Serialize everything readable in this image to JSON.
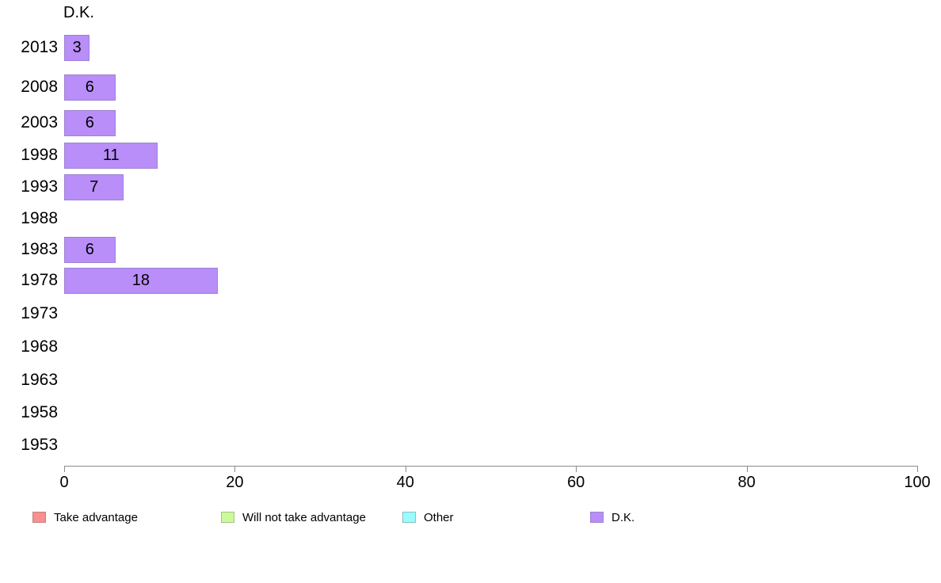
{
  "chart_data": {
    "type": "bar",
    "orientation": "horizontal",
    "title": "D.K.",
    "categories": [
      "2013",
      "2008",
      "2003",
      "1998",
      "1993",
      "1988",
      "1983",
      "1978",
      "1973",
      "1968",
      "1963",
      "1958",
      "1953"
    ],
    "values": [
      3,
      6,
      6,
      11,
      7,
      null,
      6,
      18,
      null,
      null,
      null,
      null,
      null
    ],
    "value_labels": [
      "3",
      "6",
      "6",
      "11",
      "7",
      "",
      "6",
      "18",
      "",
      "",
      "",
      "",
      ""
    ],
    "xlabel": "",
    "ylabel": "",
    "xlim": [
      0,
      100
    ],
    "x_ticks": [
      0,
      20,
      40,
      60,
      80,
      100
    ],
    "grid": false,
    "bar_fill": "#b98ef8",
    "bar_border": "#9d82d2",
    "axis_color": "#8c8c8c",
    "text_color": "#000000",
    "legend": {
      "position": "bottom",
      "items": [
        {
          "label": "Take advantage",
          "fill": "#f98f8f",
          "border": "#c48181"
        },
        {
          "label": "Will not take advantage",
          "fill": "#ccf99a",
          "border": "#a3c47e"
        },
        {
          "label": "Other",
          "fill": "#9afcfc",
          "border": "#8bbfbf"
        },
        {
          "label": "D.K.",
          "fill": "#b98ef8",
          "border": "#9d82d2"
        }
      ]
    }
  }
}
